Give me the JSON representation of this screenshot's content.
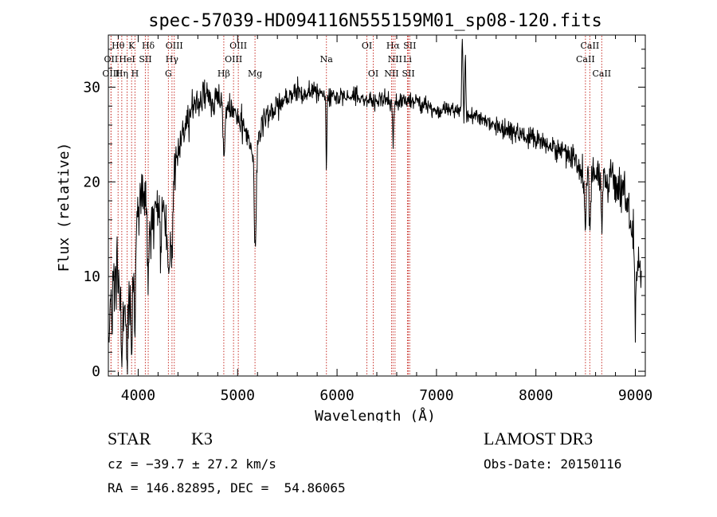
{
  "colors": {
    "spectrum": "#000000",
    "lines": "#c8312a",
    "frame": "#000000"
  },
  "chart_data": {
    "type": "line",
    "title": "spec-57039-HD094116N555159M01_sp08-120.fits",
    "xlabel": "Wavelength (Å)",
    "ylabel": "Flux (relative)",
    "xlim": [
      3700,
      9100
    ],
    "ylim": [
      -0.5,
      35.5
    ],
    "xticks": [
      4000,
      5000,
      6000,
      7000,
      8000,
      9000
    ],
    "yticks": [
      0,
      10,
      20,
      30
    ],
    "xtick_labels": [
      "4000",
      "5000",
      "6000",
      "7000",
      "8000",
      "9000"
    ],
    "ytick_labels": [
      "0",
      "10",
      "20",
      "30"
    ],
    "anchors": [
      [
        3700,
        6
      ],
      [
        3740,
        9
      ],
      [
        3780,
        11
      ],
      [
        3830,
        7
      ],
      [
        3880,
        5
      ],
      [
        3920,
        8
      ],
      [
        3960,
        10
      ],
      [
        3990,
        17
      ],
      [
        4030,
        19
      ],
      [
        4080,
        17
      ],
      [
        4130,
        15
      ],
      [
        4200,
        17
      ],
      [
        4260,
        18
      ],
      [
        4300,
        14
      ],
      [
        4340,
        21
      ],
      [
        4400,
        23
      ],
      [
        4450,
        25
      ],
      [
        4500,
        26
      ],
      [
        4550,
        28
      ],
      [
        4600,
        28
      ],
      [
        4650,
        29
      ],
      [
        4700,
        29
      ],
      [
        4750,
        28
      ],
      [
        4800,
        28.5
      ],
      [
        4861,
        28
      ],
      [
        4900,
        28
      ],
      [
        4950,
        27.5
      ],
      [
        5000,
        27
      ],
      [
        5050,
        26
      ],
      [
        5100,
        25
      ],
      [
        5150,
        23
      ],
      [
        5180,
        22.5
      ],
      [
        5200,
        24
      ],
      [
        5250,
        26
      ],
      [
        5300,
        27
      ],
      [
        5400,
        28
      ],
      [
        5500,
        29
      ],
      [
        5600,
        29.5
      ],
      [
        5700,
        29.5
      ],
      [
        5800,
        29.5
      ],
      [
        5893,
        29
      ],
      [
        6000,
        29
      ],
      [
        6100,
        29
      ],
      [
        6200,
        29
      ],
      [
        6300,
        28.5
      ],
      [
        6400,
        28.5
      ],
      [
        6500,
        29
      ],
      [
        6563,
        28
      ],
      [
        6650,
        28.5
      ],
      [
        6800,
        28.5
      ],
      [
        6900,
        28
      ],
      [
        7000,
        27.5
      ],
      [
        7100,
        27.5
      ],
      [
        7200,
        27.5
      ],
      [
        7300,
        27
      ],
      [
        7400,
        27
      ],
      [
        7500,
        26.5
      ],
      [
        7600,
        26
      ],
      [
        7700,
        25.5
      ],
      [
        7800,
        25
      ],
      [
        7900,
        25
      ],
      [
        8000,
        24.5
      ],
      [
        8100,
        24
      ],
      [
        8200,
        23.5
      ],
      [
        8300,
        23
      ],
      [
        8400,
        22.5
      ],
      [
        8500,
        20
      ],
      [
        8600,
        21
      ],
      [
        8700,
        20
      ],
      [
        8800,
        20
      ],
      [
        8900,
        19
      ],
      [
        8970,
        15
      ],
      [
        9000,
        12
      ],
      [
        9050,
        10
      ]
    ],
    "features": [
      {
        "x": 3700,
        "depth": 5,
        "width": 6
      },
      {
        "x": 3736,
        "depth": 6,
        "width": 5
      },
      {
        "x": 3835,
        "depth": 7,
        "width": 5
      },
      {
        "x": 3889,
        "depth": 6,
        "width": 5
      },
      {
        "x": 3934,
        "depth": 8,
        "width": 6
      },
      {
        "x": 3968,
        "depth": 7,
        "width": 6
      },
      {
        "x": 4101,
        "depth": 6,
        "width": 8
      },
      {
        "x": 4226,
        "depth": 7,
        "width": 6
      },
      {
        "x": 4308,
        "depth": 6,
        "width": 10
      },
      {
        "x": 4340,
        "depth": 9,
        "width": 8
      },
      {
        "x": 4861,
        "depth": 5,
        "width": 8
      },
      {
        "x": 5172,
        "depth": 9,
        "width": 6
      },
      {
        "x": 5185,
        "depth": 6,
        "width": 6
      },
      {
        "x": 5893,
        "depth": 9,
        "width": 4
      },
      {
        "x": 6563,
        "depth": 4,
        "width": 5
      },
      {
        "x": 8498,
        "depth": 4,
        "width": 6
      },
      {
        "x": 8542,
        "depth": 6,
        "width": 6
      },
      {
        "x": 8662,
        "depth": 6,
        "width": 6
      },
      {
        "x": 9000,
        "depth": 8,
        "width": 5
      }
    ],
    "spikes": [
      {
        "x": 7260,
        "height": 8,
        "width": 6
      },
      {
        "x": 7290,
        "height": 6,
        "width": 5
      }
    ],
    "noise_sigma": [
      [
        3700,
        2.6
      ],
      [
        4000,
        2.2
      ],
      [
        4300,
        2.0
      ],
      [
        4400,
        1.5
      ],
      [
        5000,
        1.1
      ],
      [
        6000,
        0.7
      ],
      [
        7000,
        0.6
      ],
      [
        8000,
        0.8
      ],
      [
        8500,
        1.3
      ],
      [
        9100,
        1.8
      ]
    ],
    "spectral_lines": [
      {
        "label": "Hθ",
        "x": 3798,
        "row": 0
      },
      {
        "label": "OII",
        "x": 3727,
        "row": 1
      },
      {
        "label": "OIII",
        "x": 3727,
        "row": 2
      },
      {
        "label": "K",
        "x": 3934,
        "row": 0
      },
      {
        "label": "HeI",
        "x": 3889,
        "row": 1
      },
      {
        "label": "Hη",
        "x": 3835,
        "row": 2
      },
      {
        "label": "Hδ",
        "x": 4101,
        "row": 0
      },
      {
        "label": "SII",
        "x": 4072,
        "row": 1
      },
      {
        "label": "H",
        "x": 3968,
        "row": 2
      },
      {
        "label": "OIII",
        "x": 4363,
        "row": 0
      },
      {
        "label": "Hγ",
        "x": 4340,
        "row": 1
      },
      {
        "label": "G",
        "x": 4304,
        "row": 2
      },
      {
        "label": "OIII",
        "x": 5007,
        "row": 0
      },
      {
        "label": "OIII",
        "x": 4959,
        "row": 1
      },
      {
        "label": "Hβ",
        "x": 4861,
        "row": 2
      },
      {
        "label": "Mg",
        "x": 5175,
        "row": 2
      },
      {
        "label": "Na",
        "x": 5893,
        "row": 1
      },
      {
        "label": "OI",
        "x": 6300,
        "row": 0
      },
      {
        "label": "OI",
        "x": 6364,
        "row": 2
      },
      {
        "label": "Hα",
        "x": 6563,
        "row": 0
      },
      {
        "label": "NII",
        "x": 6583,
        "row": 1
      },
      {
        "label": "NII",
        "x": 6548,
        "row": 2
      },
      {
        "label": "SII",
        "x": 6731,
        "row": 0
      },
      {
        "label": "Li",
        "x": 6708,
        "row": 1
      },
      {
        "label": "SII",
        "x": 6717,
        "row": 2
      },
      {
        "label": "CaII",
        "x": 8542,
        "row": 0
      },
      {
        "label": "CaII",
        "x": 8498,
        "row": 1
      },
      {
        "label": "CaII",
        "x": 8662,
        "row": 2
      }
    ]
  },
  "info": {
    "object_class": "STAR",
    "subclass": "K3",
    "survey": "LAMOST DR3",
    "redshift": "cz = −39.7 ± 27.2 km/s",
    "obs_date": "Obs-Date: 20150116",
    "coords": "RA = 146.82895, DEC =  54.86065"
  }
}
